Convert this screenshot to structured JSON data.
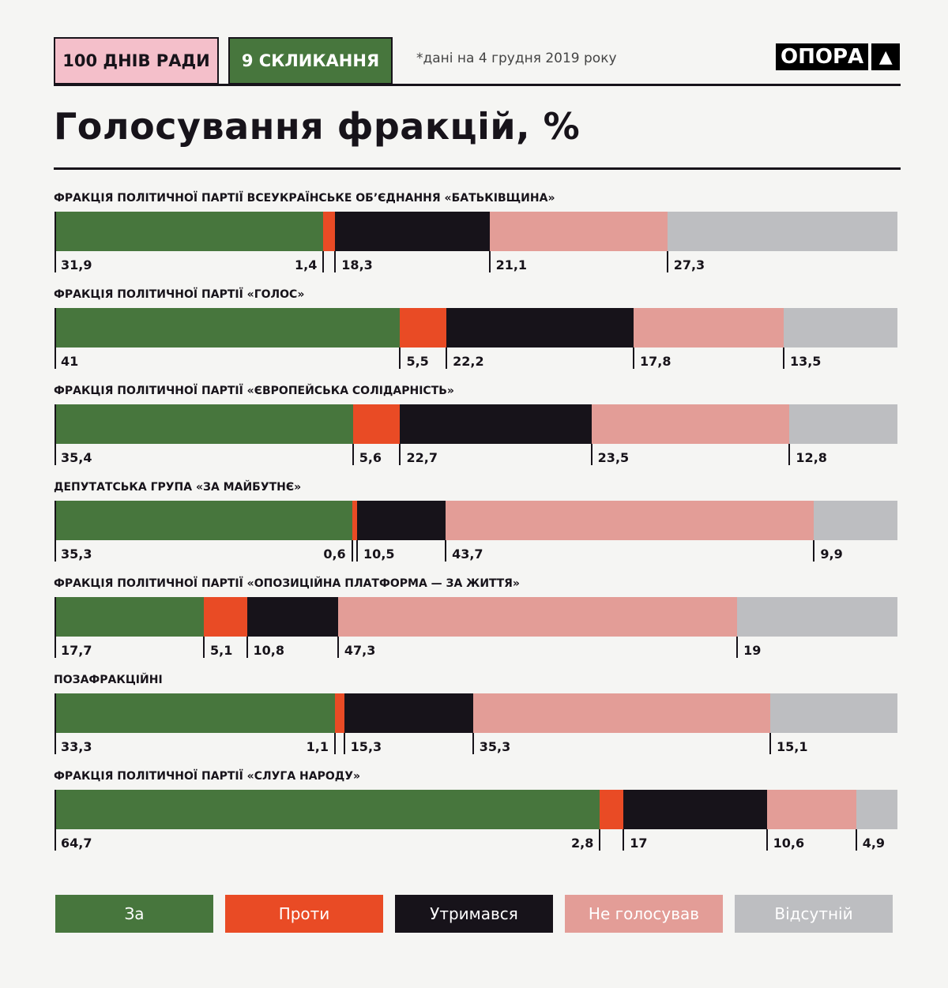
{
  "header": {
    "tag1": "100 ДНІВ РАДИ",
    "tag2": "9 СКЛИКАННЯ",
    "note": "*дані на 4 грудня 2019 року",
    "logo": "ОПОРА",
    "logo_icon": "triangle-icon"
  },
  "chart_data": {
    "type": "bar",
    "stacked": true,
    "orientation": "horizontal",
    "title": "Голосування фракцій, %",
    "legend": [
      "За",
      "Проти",
      "Утримався",
      "Не голосував",
      "Відсутній"
    ],
    "legend_placement": "bottom",
    "colors": [
      "#47763d",
      "#e94b25",
      "#17131a",
      "#e39d97",
      "#bdbec1"
    ],
    "legend_text_colors": [
      "#ffffff",
      "#ffffff",
      "#ffffff",
      "#ffffff",
      "#ffffff"
    ],
    "categories": [
      "ФРАКЦІЯ ПОЛІТИЧНОЇ ПАРТІЇ ВСЕУКРАЇНСЬКЕ ОБ’ЄДНАННЯ «БАТЬКІВЩИНА»",
      "ФРАКЦІЯ ПОЛІТИЧНОЇ ПАРТІЇ «ГОЛОС»",
      "ФРАКЦІЯ ПОЛІТИЧНОЇ ПАРТІЇ «ЄВРОПЕЙСЬКА СОЛІДАРНІСТЬ»",
      "ДЕПУТАТСЬКА ГРУПА «ЗА МАЙБУТНЄ»",
      "ФРАКЦІЯ ПОЛІТИЧНОЇ ПАРТІЇ «ОПОЗИЦІЙНА ПЛАТФОРМА — ЗА ЖИТТЯ»",
      "ПОЗАФРАКЦІЙНІ",
      "ФРАКЦІЯ ПОЛІТИЧНОЇ ПАРТІЇ «СЛУГА НАРОДУ»"
    ],
    "values": [
      [
        31.9,
        1.4,
        18.3,
        21.1,
        27.3
      ],
      [
        41,
        5.5,
        22.2,
        17.8,
        13.5
      ],
      [
        35.4,
        5.6,
        22.7,
        23.5,
        12.8
      ],
      [
        35.3,
        0.6,
        10.5,
        43.7,
        9.9
      ],
      [
        17.7,
        5.1,
        10.8,
        47.3,
        19
      ],
      [
        33.3,
        1.1,
        15.3,
        35.3,
        15.1
      ],
      [
        64.7,
        2.8,
        17,
        10.6,
        4.9
      ]
    ],
    "labels": [
      [
        "31,9",
        "1,4",
        "18,3",
        "21,1",
        "27,3"
      ],
      [
        "41",
        "5,5",
        "22,2",
        "17,8",
        "13,5"
      ],
      [
        "35,4",
        "5,6",
        "22,7",
        "23,5",
        "12,8"
      ],
      [
        "35,3",
        "0,6",
        "10,5",
        "43,7",
        "9,9"
      ],
      [
        "17,7",
        "5,1",
        "10,8",
        "47,3",
        "19"
      ],
      [
        "33,3",
        "1,1",
        "15,3",
        "35,3",
        "15,1"
      ],
      [
        "64,7",
        "2,8",
        "17",
        "10,6",
        "4,9"
      ]
    ],
    "xlim": [
      0,
      100
    ]
  }
}
